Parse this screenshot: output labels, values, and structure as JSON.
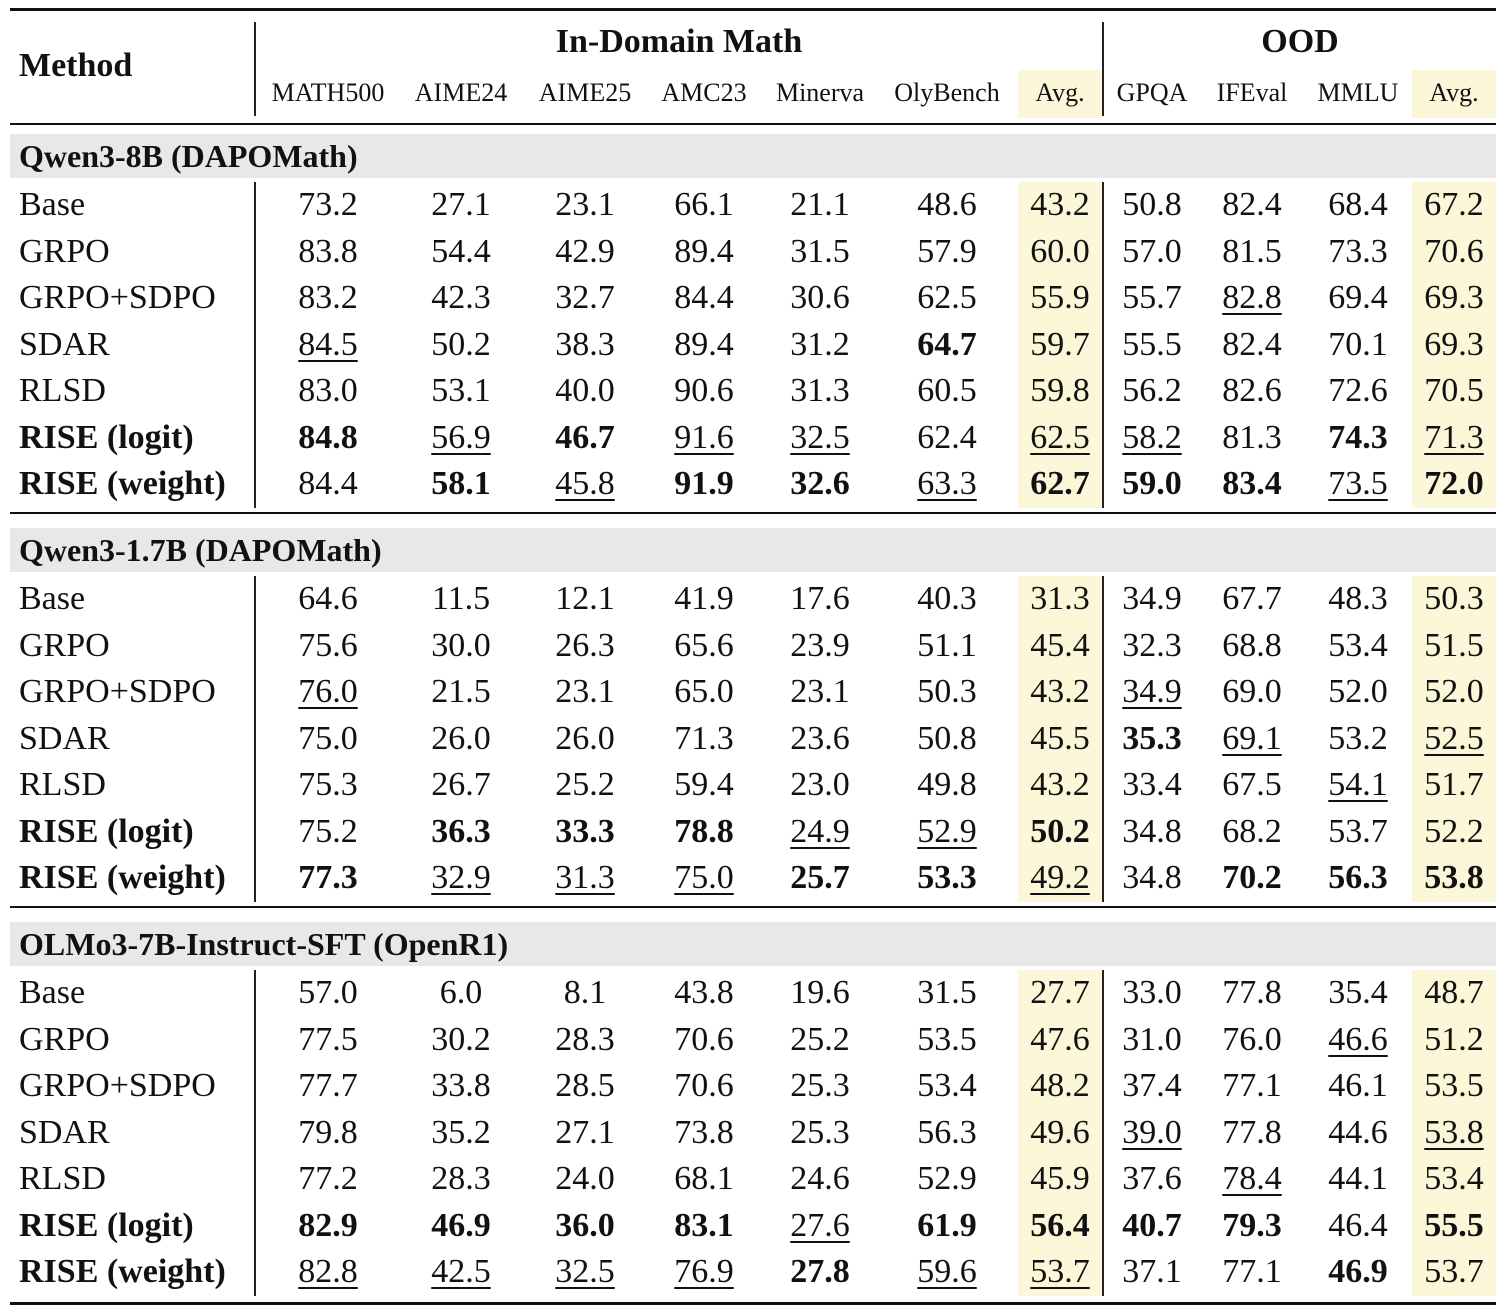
{
  "header": {
    "method": "Method",
    "in_domain": "In-Domain Math",
    "ood": "OOD",
    "columns": [
      "MATH500",
      "AIME24",
      "AIME25",
      "AMC23",
      "Minerva",
      "OlyBench",
      "Avg.",
      "GPQA",
      "IFEval",
      "MMLU",
      "Avg."
    ]
  },
  "colors": {
    "avg_highlight": "#fbf7d8",
    "group_band": "#e8e8e8"
  },
  "groups": [
    {
      "title": "Qwen3-8B (DAPOMath)",
      "rows": [
        {
          "method": "Base",
          "bold": false,
          "values": [
            "73.2",
            "27.1",
            "23.1",
            "66.1",
            "21.1",
            "48.6",
            "43.2",
            "50.8",
            "82.4",
            "68.4",
            "67.2"
          ],
          "styles": [
            "",
            "",
            "",
            "",
            "",
            "",
            "",
            "",
            "",
            "",
            ""
          ]
        },
        {
          "method": "GRPO",
          "bold": false,
          "values": [
            "83.8",
            "54.4",
            "42.9",
            "89.4",
            "31.5",
            "57.9",
            "60.0",
            "57.0",
            "81.5",
            "73.3",
            "70.6"
          ],
          "styles": [
            "",
            "",
            "",
            "",
            "",
            "",
            "",
            "",
            "",
            "",
            ""
          ]
        },
        {
          "method": "GRPO+SDPO",
          "bold": false,
          "values": [
            "83.2",
            "42.3",
            "32.7",
            "84.4",
            "30.6",
            "62.5",
            "55.9",
            "55.7",
            "82.8",
            "69.4",
            "69.3"
          ],
          "styles": [
            "",
            "",
            "",
            "",
            "",
            "",
            "",
            "",
            "u",
            "",
            ""
          ]
        },
        {
          "method": "SDAR",
          "bold": false,
          "values": [
            "84.5",
            "50.2",
            "38.3",
            "89.4",
            "31.2",
            "64.7",
            "59.7",
            "55.5",
            "82.4",
            "70.1",
            "69.3"
          ],
          "styles": [
            "u",
            "",
            "",
            "",
            "",
            "b",
            "",
            "",
            "",
            "",
            ""
          ]
        },
        {
          "method": "RLSD",
          "bold": false,
          "values": [
            "83.0",
            "53.1",
            "40.0",
            "90.6",
            "31.3",
            "60.5",
            "59.8",
            "56.2",
            "82.6",
            "72.6",
            "70.5"
          ],
          "styles": [
            "",
            "",
            "",
            "",
            "",
            "",
            "",
            "",
            "",
            "",
            ""
          ]
        },
        {
          "method": "RISE (logit)",
          "bold": true,
          "values": [
            "84.8",
            "56.9",
            "46.7",
            "91.6",
            "32.5",
            "62.4",
            "62.5",
            "58.2",
            "81.3",
            "74.3",
            "71.3"
          ],
          "styles": [
            "b",
            "u",
            "b",
            "u",
            "u",
            "",
            "u",
            "u",
            "",
            "b",
            "u"
          ]
        },
        {
          "method": "RISE (weight)",
          "bold": true,
          "values": [
            "84.4",
            "58.1",
            "45.8",
            "91.9",
            "32.6",
            "63.3",
            "62.7",
            "59.0",
            "83.4",
            "73.5",
            "72.0"
          ],
          "styles": [
            "",
            "b",
            "u",
            "b",
            "b",
            "u",
            "b",
            "b",
            "b",
            "u",
            "b"
          ]
        }
      ]
    },
    {
      "title": "Qwen3-1.7B (DAPOMath)",
      "rows": [
        {
          "method": "Base",
          "bold": false,
          "values": [
            "64.6",
            "11.5",
            "12.1",
            "41.9",
            "17.6",
            "40.3",
            "31.3",
            "34.9",
            "67.7",
            "48.3",
            "50.3"
          ],
          "styles": [
            "",
            "",
            "",
            "",
            "",
            "",
            "",
            "",
            "",
            "",
            ""
          ]
        },
        {
          "method": "GRPO",
          "bold": false,
          "values": [
            "75.6",
            "30.0",
            "26.3",
            "65.6",
            "23.9",
            "51.1",
            "45.4",
            "32.3",
            "68.8",
            "53.4",
            "51.5"
          ],
          "styles": [
            "",
            "",
            "",
            "",
            "",
            "",
            "",
            "",
            "",
            "",
            ""
          ]
        },
        {
          "method": "GRPO+SDPO",
          "bold": false,
          "values": [
            "76.0",
            "21.5",
            "23.1",
            "65.0",
            "23.1",
            "50.3",
            "43.2",
            "34.9",
            "69.0",
            "52.0",
            "52.0"
          ],
          "styles": [
            "u",
            "",
            "",
            "",
            "",
            "",
            "",
            "u",
            "",
            "",
            ""
          ]
        },
        {
          "method": "SDAR",
          "bold": false,
          "values": [
            "75.0",
            "26.0",
            "26.0",
            "71.3",
            "23.6",
            "50.8",
            "45.5",
            "35.3",
            "69.1",
            "53.2",
            "52.5"
          ],
          "styles": [
            "",
            "",
            "",
            "",
            "",
            "",
            "",
            "b",
            "u",
            "",
            "u"
          ]
        },
        {
          "method": "RLSD",
          "bold": false,
          "values": [
            "75.3",
            "26.7",
            "25.2",
            "59.4",
            "23.0",
            "49.8",
            "43.2",
            "33.4",
            "67.5",
            "54.1",
            "51.7"
          ],
          "styles": [
            "",
            "",
            "",
            "",
            "",
            "",
            "",
            "",
            "",
            "u",
            ""
          ]
        },
        {
          "method": "RISE (logit)",
          "bold": true,
          "values": [
            "75.2",
            "36.3",
            "33.3",
            "78.8",
            "24.9",
            "52.9",
            "50.2",
            "34.8",
            "68.2",
            "53.7",
            "52.2"
          ],
          "styles": [
            "",
            "b",
            "b",
            "b",
            "u",
            "u",
            "b",
            "",
            "",
            "",
            ""
          ]
        },
        {
          "method": "RISE (weight)",
          "bold": true,
          "values": [
            "77.3",
            "32.9",
            "31.3",
            "75.0",
            "25.7",
            "53.3",
            "49.2",
            "34.8",
            "70.2",
            "56.3",
            "53.8"
          ],
          "styles": [
            "b",
            "u",
            "u",
            "u",
            "b",
            "b",
            "u",
            "",
            "b",
            "b",
            "b"
          ]
        }
      ]
    },
    {
      "title": "OLMo3-7B-Instruct-SFT (OpenR1)",
      "rows": [
        {
          "method": "Base",
          "bold": false,
          "values": [
            "57.0",
            "6.0",
            "8.1",
            "43.8",
            "19.6",
            "31.5",
            "27.7",
            "33.0",
            "77.8",
            "35.4",
            "48.7"
          ],
          "styles": [
            "",
            "",
            "",
            "",
            "",
            "",
            "",
            "",
            "",
            "",
            ""
          ]
        },
        {
          "method": "GRPO",
          "bold": false,
          "values": [
            "77.5",
            "30.2",
            "28.3",
            "70.6",
            "25.2",
            "53.5",
            "47.6",
            "31.0",
            "76.0",
            "46.6",
            "51.2"
          ],
          "styles": [
            "",
            "",
            "",
            "",
            "",
            "",
            "",
            "",
            "",
            "u",
            ""
          ]
        },
        {
          "method": "GRPO+SDPO",
          "bold": false,
          "values": [
            "77.7",
            "33.8",
            "28.5",
            "70.6",
            "25.3",
            "53.4",
            "48.2",
            "37.4",
            "77.1",
            "46.1",
            "53.5"
          ],
          "styles": [
            "",
            "",
            "",
            "",
            "",
            "",
            "",
            "",
            "",
            "",
            ""
          ]
        },
        {
          "method": "SDAR",
          "bold": false,
          "values": [
            "79.8",
            "35.2",
            "27.1",
            "73.8",
            "25.3",
            "56.3",
            "49.6",
            "39.0",
            "77.8",
            "44.6",
            "53.8"
          ],
          "styles": [
            "",
            "",
            "",
            "",
            "",
            "",
            "",
            "u",
            "",
            "",
            "u"
          ]
        },
        {
          "method": "RLSD",
          "bold": false,
          "values": [
            "77.2",
            "28.3",
            "24.0",
            "68.1",
            "24.6",
            "52.9",
            "45.9",
            "37.6",
            "78.4",
            "44.1",
            "53.4"
          ],
          "styles": [
            "",
            "",
            "",
            "",
            "",
            "",
            "",
            "",
            "u",
            "",
            ""
          ]
        },
        {
          "method": "RISE (logit)",
          "bold": true,
          "values": [
            "82.9",
            "46.9",
            "36.0",
            "83.1",
            "27.6",
            "61.9",
            "56.4",
            "40.7",
            "79.3",
            "46.4",
            "55.5"
          ],
          "styles": [
            "b",
            "b",
            "b",
            "b",
            "u",
            "b",
            "b",
            "b",
            "b",
            "",
            "b"
          ]
        },
        {
          "method": "RISE (weight)",
          "bold": true,
          "values": [
            "82.8",
            "42.5",
            "32.5",
            "76.9",
            "27.8",
            "59.6",
            "53.7",
            "37.1",
            "77.1",
            "46.9",
            "53.7"
          ],
          "styles": [
            "u",
            "u",
            "u",
            "u",
            "b",
            "u",
            "u",
            "",
            "",
            "b",
            ""
          ]
        }
      ]
    }
  ]
}
